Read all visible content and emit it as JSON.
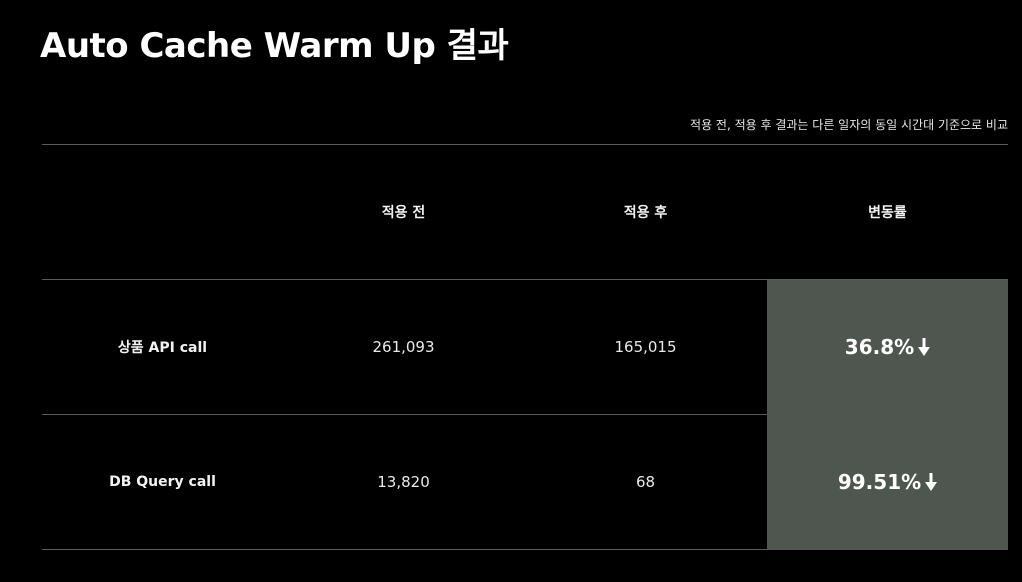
{
  "title": "Auto Cache Warm Up 결과",
  "note": "적용 전,  적용 후 결과는 다른 일자의 동일 시간대 기준으로 비교",
  "table": {
    "headers": [
      "적용 전",
      "적용 후",
      "변동률"
    ],
    "rows": [
      {
        "label": "상품 API call",
        "before": "261,093",
        "after": "165,015",
        "rate": "36.8%",
        "direction": "down"
      },
      {
        "label": "DB Query call",
        "before": "13,820",
        "after": "68",
        "rate": "99.51%",
        "direction": "down"
      }
    ]
  },
  "colors": {
    "background": "#000000",
    "highlight": "#4f5650",
    "divider": "#5a5a5a"
  }
}
